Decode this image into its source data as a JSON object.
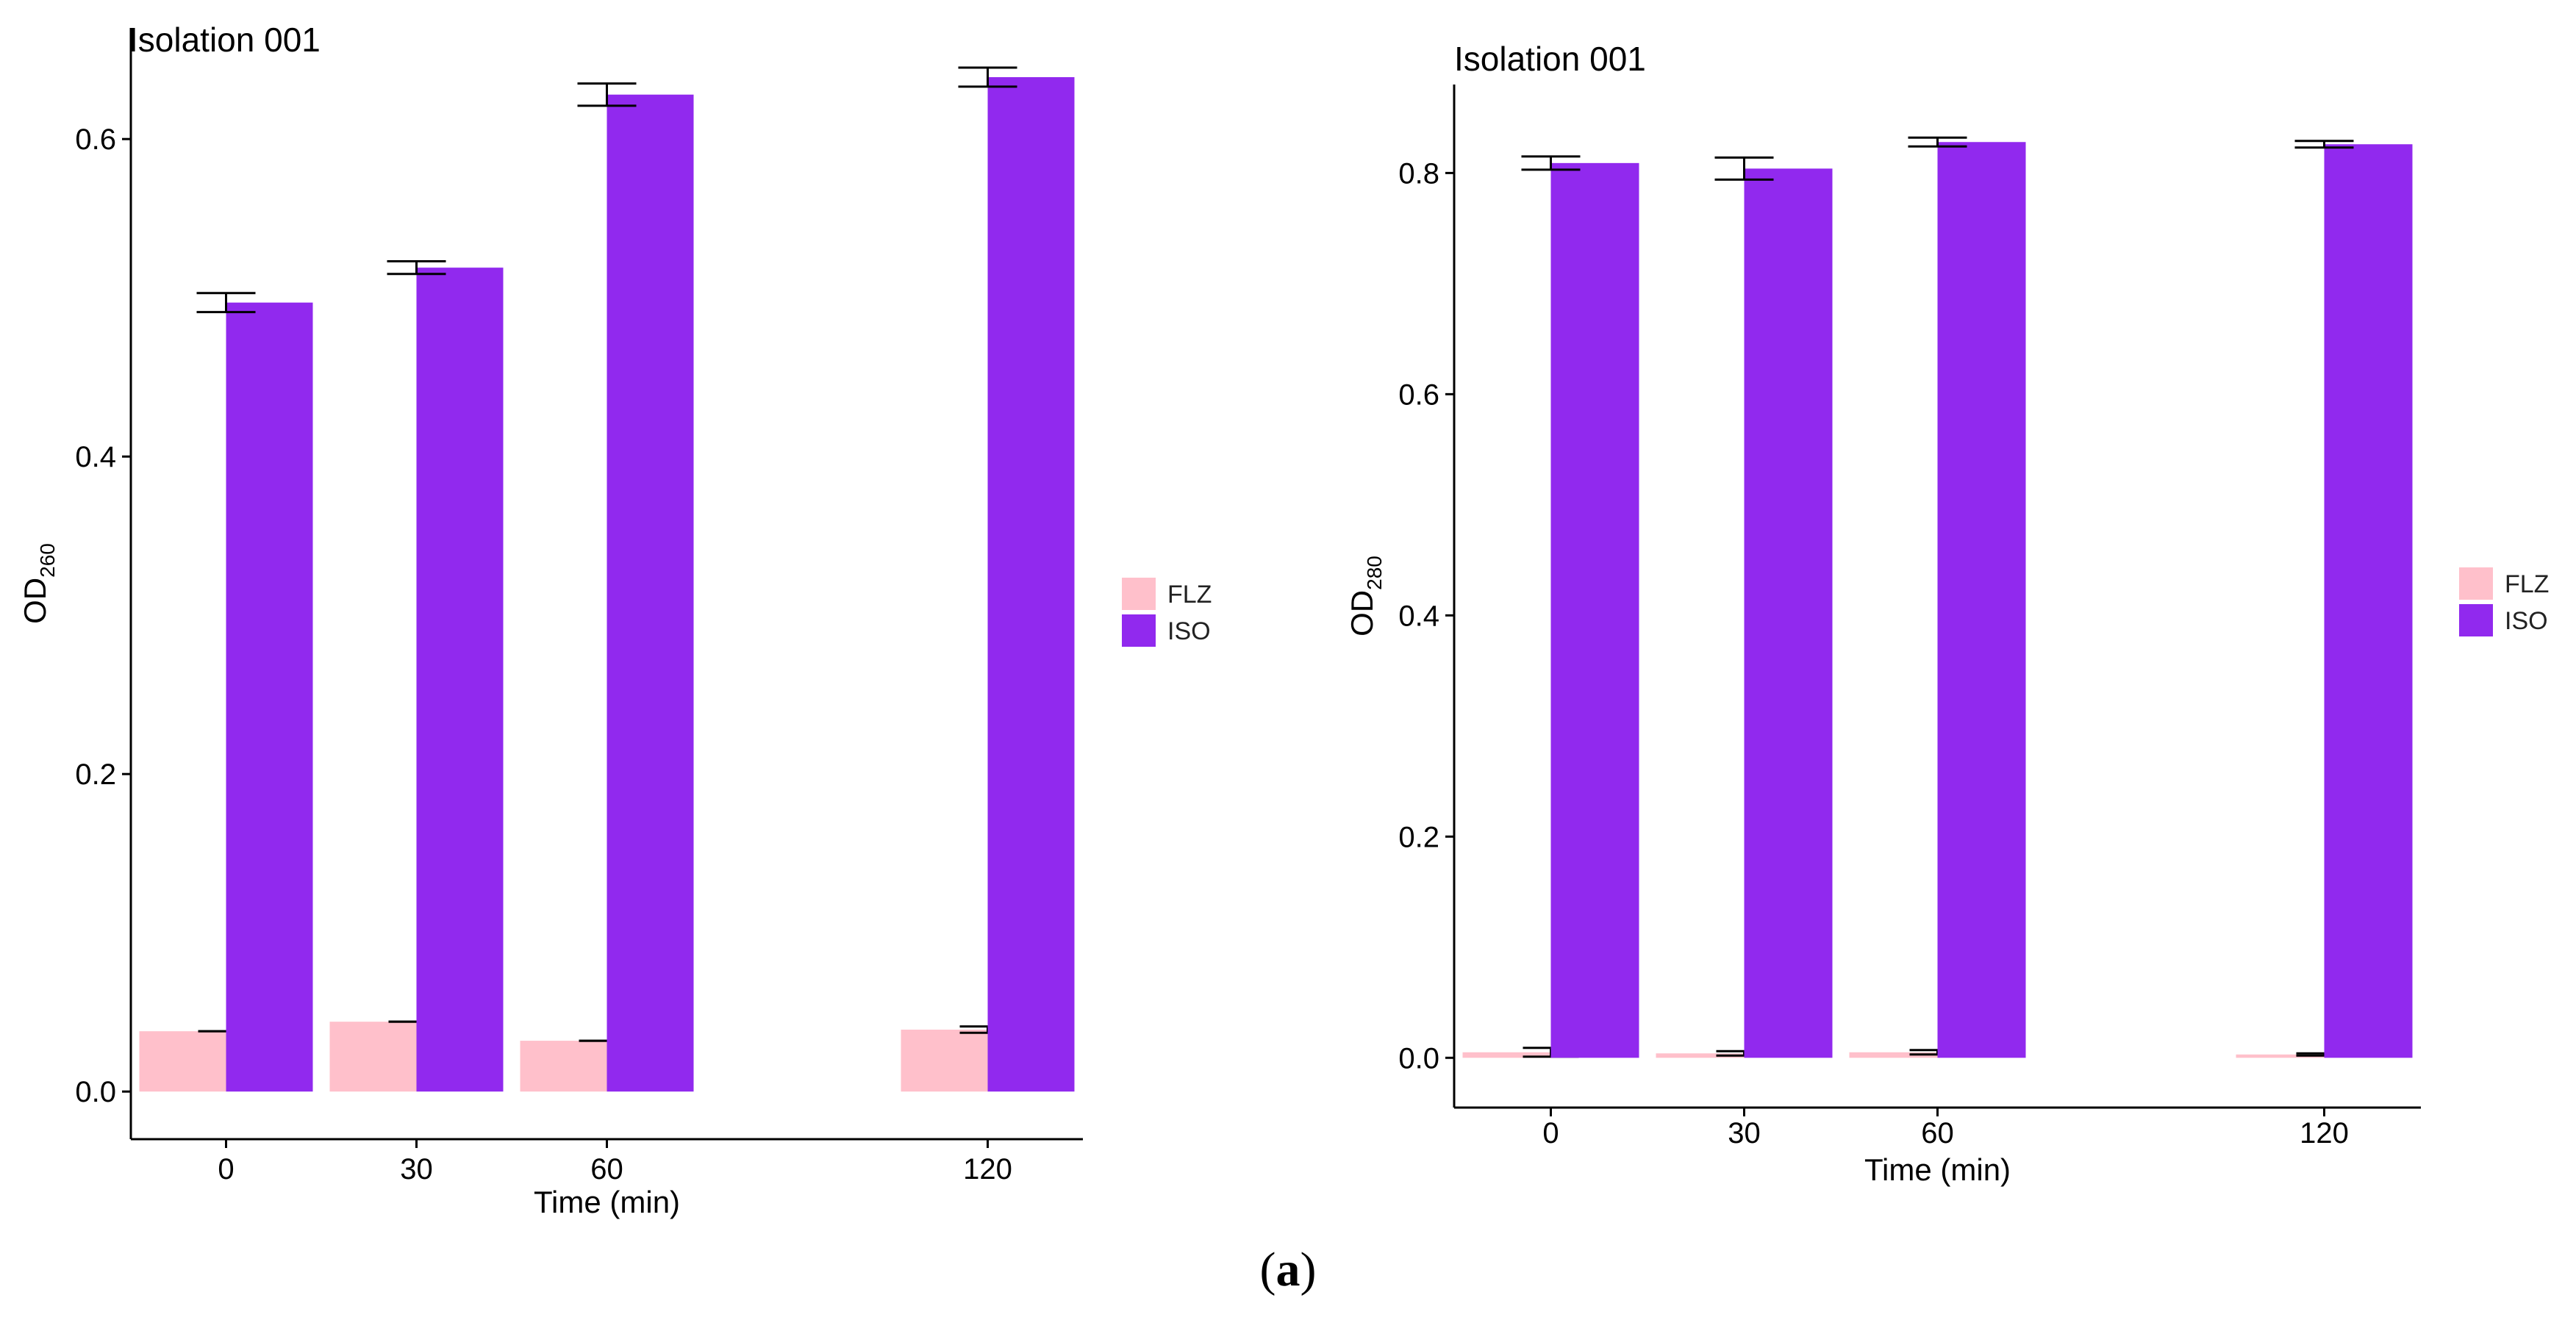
{
  "figure": {
    "caption_open": "(",
    "caption_label": "a",
    "caption_close": ")"
  },
  "colors": {
    "FLZ": "#FFC0CB",
    "ISO": "#9129EE",
    "axis": "#000000"
  },
  "chart_data": [
    {
      "type": "bar",
      "title": "Isolation 001",
      "xlabel": "Time (min)",
      "ylabel_main": "OD",
      "ylabel_sub": "260",
      "x": [
        0,
        30,
        60,
        120
      ],
      "categories": [
        "0",
        "30",
        "60",
        "120"
      ],
      "xlim": [
        -15,
        135
      ],
      "ylim": [
        -0.03,
        0.67
      ],
      "yticks": [
        0.0,
        0.2,
        0.4,
        0.6
      ],
      "ytick_labels": [
        "0.0",
        "0.2",
        "0.4",
        "0.6"
      ],
      "legend": {
        "position": "right",
        "entries": [
          "FLZ",
          "ISO"
        ]
      },
      "series": [
        {
          "name": "FLZ",
          "values": [
            0.038,
            0.044,
            0.032,
            0.039
          ],
          "errors": [
            0.0,
            0.0,
            0.0,
            0.002
          ]
        },
        {
          "name": "ISO",
          "values": [
            0.497,
            0.519,
            0.628,
            0.639
          ],
          "errors": [
            0.006,
            0.004,
            0.007,
            0.006
          ]
        }
      ]
    },
    {
      "type": "bar",
      "title": "Isolation 001",
      "xlabel": "Time (min)",
      "ylabel_main": "OD",
      "ylabel_sub": "280",
      "x": [
        0,
        30,
        60,
        120
      ],
      "categories": [
        "0",
        "30",
        "60",
        "120"
      ],
      "xlim": [
        -15,
        135
      ],
      "ylim": [
        -0.045,
        0.88
      ],
      "yticks": [
        0.0,
        0.2,
        0.4,
        0.6,
        0.8
      ],
      "ytick_labels": [
        "0.0",
        "0.2",
        "0.4",
        "0.6",
        "0.8"
      ],
      "legend": {
        "position": "right",
        "entries": [
          "FLZ",
          "ISO"
        ]
      },
      "series": [
        {
          "name": "FLZ",
          "values": [
            0.005,
            0.004,
            0.005,
            0.003
          ],
          "errors": [
            0.004,
            0.002,
            0.002,
            0.001
          ]
        },
        {
          "name": "ISO",
          "values": [
            0.809,
            0.804,
            0.828,
            0.826
          ],
          "errors": [
            0.006,
            0.01,
            0.004,
            0.003
          ]
        }
      ]
    }
  ]
}
